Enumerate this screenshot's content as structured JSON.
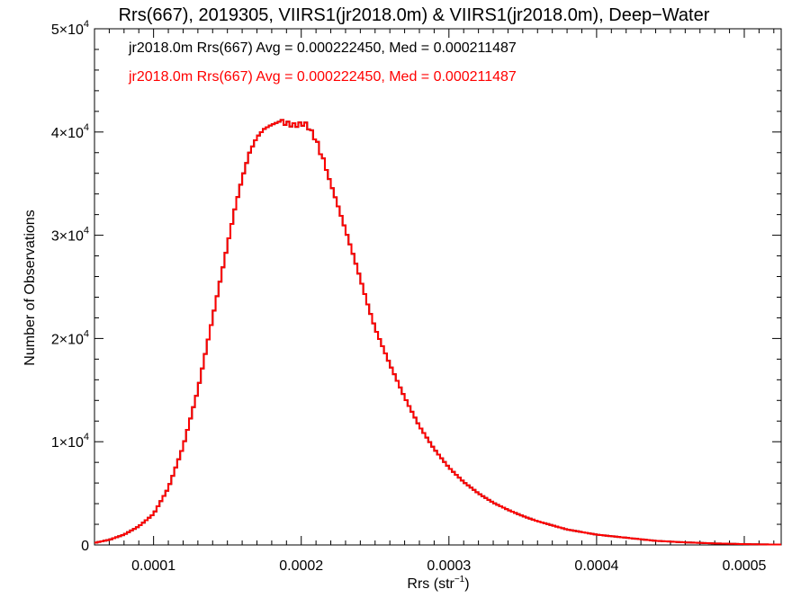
{
  "chart_data": {
    "type": "line",
    "title": "Rrs(667), 2019305, VIIRS1(jr2018.0m) & VIIRS1(jr2018.0m), Deep−Water",
    "xlabel": "Rrs (str",
    "xlabel_sup": "−1",
    "xlabel_end": ")",
    "ylabel": "Number of Observations",
    "xlim": [
      6e-05,
      0.000525
    ],
    "ylim": [
      0,
      50000
    ],
    "x_ticks": [
      {
        "value": 0.0001,
        "label": "0.0001"
      },
      {
        "value": 0.0002,
        "label": "0.0002"
      },
      {
        "value": 0.0003,
        "label": "0.0003"
      },
      {
        "value": 0.0004,
        "label": "0.0004"
      },
      {
        "value": 0.0005,
        "label": "0.0005"
      }
    ],
    "y_ticks": [
      {
        "value": 0,
        "mant": "0",
        "exp": ""
      },
      {
        "value": 10000,
        "mant": "1×10",
        "exp": "4"
      },
      {
        "value": 20000,
        "mant": "2×10",
        "exp": "4"
      },
      {
        "value": 30000,
        "mant": "3×10",
        "exp": "4"
      },
      {
        "value": 40000,
        "mant": "4×10",
        "exp": "4"
      },
      {
        "value": 50000,
        "mant": "5×10",
        "exp": "4"
      }
    ],
    "annotations": [
      {
        "text": "jr2018.0m Rrs(667) Avg = 0.000222450, Med = 0.000211487",
        "color": "#000000"
      },
      {
        "text": "jr2018.0m Rrs(667) Avg = 0.000222450, Med = 0.000211487",
        "color": "#ff0000"
      }
    ],
    "bin_width": 2e-06,
    "series": [
      {
        "color": "#000000",
        "style": "step",
        "x": [
          6e-05,
          7e-05,
          8e-05,
          9e-05,
          0.0001,
          0.00011,
          0.00012,
          0.00013,
          0.00014,
          0.00015,
          0.000155,
          0.00016,
          0.000165,
          0.00017,
          0.000175,
          0.00018,
          0.000185,
          0.00019,
          0.000195,
          0.0002,
          0.000202,
          0.000205,
          0.00021,
          0.000215,
          0.00022,
          0.000225,
          0.00023,
          0.000235,
          0.00024,
          0.000245,
          0.00025,
          0.00026,
          0.00027,
          0.00028,
          0.00029,
          0.0003,
          0.00031,
          0.00032,
          0.00033,
          0.00034,
          0.00035,
          0.00036,
          0.00037,
          0.00038,
          0.0004,
          0.00042,
          0.00044,
          0.00046,
          0.00048,
          0.0005,
          0.00052
        ],
        "y": [
          200,
          500,
          1000,
          1800,
          3000,
          5500,
          9500,
          15000,
          22000,
          29000,
          32500,
          35500,
          38000,
          39500,
          40300,
          40700,
          41000,
          40800,
          40600,
          40700,
          40800,
          40400,
          39200,
          37200,
          35000,
          32800,
          30500,
          28200,
          25800,
          23300,
          21000,
          17500,
          14300,
          11500,
          9300,
          7500,
          6100,
          5000,
          4100,
          3400,
          2800,
          2300,
          1900,
          1500,
          1000,
          700,
          400,
          250,
          150,
          80,
          40
        ]
      },
      {
        "color": "#ff0000",
        "style": "step",
        "x": [
          6e-05,
          7e-05,
          8e-05,
          9e-05,
          0.0001,
          0.00011,
          0.00012,
          0.00013,
          0.00014,
          0.00015,
          0.000155,
          0.00016,
          0.000165,
          0.00017,
          0.000175,
          0.00018,
          0.000185,
          0.00019,
          0.000195,
          0.0002,
          0.000202,
          0.000205,
          0.00021,
          0.000215,
          0.00022,
          0.000225,
          0.00023,
          0.000235,
          0.00024,
          0.000245,
          0.00025,
          0.00026,
          0.00027,
          0.00028,
          0.00029,
          0.0003,
          0.00031,
          0.00032,
          0.00033,
          0.00034,
          0.00035,
          0.00036,
          0.00037,
          0.00038,
          0.0004,
          0.00042,
          0.00044,
          0.00046,
          0.00048,
          0.0005,
          0.00052
        ],
        "y": [
          200,
          500,
          1000,
          1800,
          3000,
          5500,
          9500,
          15000,
          22000,
          29000,
          32500,
          35500,
          38000,
          39500,
          40300,
          40700,
          41000,
          40800,
          40600,
          40700,
          40800,
          40400,
          39200,
          37200,
          35000,
          32800,
          30500,
          28200,
          25800,
          23300,
          21000,
          17500,
          14300,
          11500,
          9300,
          7500,
          6100,
          5000,
          4100,
          3400,
          2800,
          2300,
          1900,
          1500,
          1000,
          700,
          400,
          250,
          150,
          80,
          40
        ]
      }
    ]
  }
}
